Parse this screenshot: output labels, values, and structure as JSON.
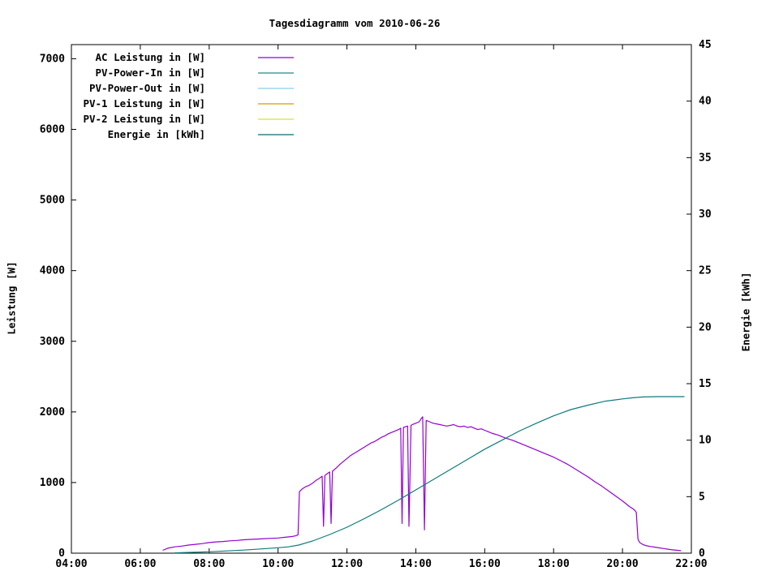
{
  "chart_data": {
    "type": "line",
    "title": "Tagesdiagramm vom 2010-06-26",
    "x_axis": {
      "ticks": [
        "04:00",
        "06:00",
        "08:00",
        "10:00",
        "12:00",
        "14:00",
        "16:00",
        "18:00",
        "20:00",
        "22:00"
      ],
      "range_hours": [
        4,
        22
      ]
    },
    "y_left": {
      "label": "Leistung [W]",
      "ticks": [
        0,
        1000,
        2000,
        3000,
        4000,
        5000,
        6000,
        7000
      ],
      "range": [
        0,
        7200
      ]
    },
    "y_right": {
      "label": "Energie [kWh]",
      "ticks": [
        0,
        5,
        10,
        15,
        20,
        25,
        30,
        35,
        40,
        45
      ],
      "range": [
        0,
        45
      ]
    },
    "legend": [
      {
        "label": "AC Leistung in [W]",
        "color": "#9400d3"
      },
      {
        "label": "PV-Power-In in [W]",
        "color": "#1f8a8a"
      },
      {
        "label": "PV-Power-Out in [W]",
        "color": "#87ceeb"
      },
      {
        "label": "PV-1 Leistung in [W]",
        "color": "#d39c00"
      },
      {
        "label": "PV-2 Leistung in [W]",
        "color": "#dede3c"
      },
      {
        "label": "Energie in [kWh]",
        "color": "#0e6b6b"
      }
    ],
    "series": [
      {
        "name": "AC Leistung in [W]",
        "axis": "left",
        "color": "#9400d3",
        "points": [
          [
            6.65,
            40
          ],
          [
            6.8,
            70
          ],
          [
            7.0,
            90
          ],
          [
            7.2,
            100
          ],
          [
            7.4,
            115
          ],
          [
            7.6,
            125
          ],
          [
            7.8,
            135
          ],
          [
            8.0,
            150
          ],
          [
            8.2,
            160
          ],
          [
            8.4,
            165
          ],
          [
            8.6,
            175
          ],
          [
            8.8,
            180
          ],
          [
            9.0,
            190
          ],
          [
            9.2,
            195
          ],
          [
            9.4,
            200
          ],
          [
            9.6,
            205
          ],
          [
            9.8,
            210
          ],
          [
            10.0,
            215
          ],
          [
            10.2,
            225
          ],
          [
            10.4,
            235
          ],
          [
            10.5,
            245
          ],
          [
            10.58,
            260
          ],
          [
            10.62,
            870
          ],
          [
            10.7,
            910
          ],
          [
            10.8,
            940
          ],
          [
            10.9,
            960
          ],
          [
            11.0,
            990
          ],
          [
            11.1,
            1030
          ],
          [
            11.2,
            1060
          ],
          [
            11.28,
            1090
          ],
          [
            11.32,
            380
          ],
          [
            11.36,
            1100
          ],
          [
            11.44,
            1130
          ],
          [
            11.5,
            1150
          ],
          [
            11.54,
            420
          ],
          [
            11.58,
            1160
          ],
          [
            11.7,
            1210
          ],
          [
            11.8,
            1260
          ],
          [
            11.9,
            1300
          ],
          [
            12.0,
            1340
          ],
          [
            12.1,
            1380
          ],
          [
            12.2,
            1410
          ],
          [
            12.3,
            1440
          ],
          [
            12.4,
            1470
          ],
          [
            12.5,
            1500
          ],
          [
            12.6,
            1530
          ],
          [
            12.7,
            1560
          ],
          [
            12.8,
            1580
          ],
          [
            12.9,
            1610
          ],
          [
            13.0,
            1640
          ],
          [
            13.1,
            1660
          ],
          [
            13.2,
            1690
          ],
          [
            13.3,
            1710
          ],
          [
            13.4,
            1730
          ],
          [
            13.5,
            1750
          ],
          [
            13.56,
            1770
          ],
          [
            13.6,
            420
          ],
          [
            13.64,
            1780
          ],
          [
            13.7,
            1790
          ],
          [
            13.76,
            1800
          ],
          [
            13.8,
            380
          ],
          [
            13.86,
            1810
          ],
          [
            13.9,
            1820
          ],
          [
            14.0,
            1840
          ],
          [
            14.1,
            1860
          ],
          [
            14.15,
            1900
          ],
          [
            14.2,
            1930
          ],
          [
            14.25,
            330
          ],
          [
            14.3,
            1880
          ],
          [
            14.4,
            1860
          ],
          [
            14.5,
            1840
          ],
          [
            14.6,
            1830
          ],
          [
            14.7,
            1820
          ],
          [
            14.8,
            1810
          ],
          [
            14.9,
            1800
          ],
          [
            15.0,
            1810
          ],
          [
            15.1,
            1820
          ],
          [
            15.2,
            1800
          ],
          [
            15.3,
            1790
          ],
          [
            15.4,
            1800
          ],
          [
            15.5,
            1780
          ],
          [
            15.6,
            1790
          ],
          [
            15.7,
            1770
          ],
          [
            15.8,
            1750
          ],
          [
            15.9,
            1760
          ],
          [
            16.0,
            1740
          ],
          [
            16.1,
            1720
          ],
          [
            16.2,
            1700
          ],
          [
            16.4,
            1670
          ],
          [
            16.6,
            1630
          ],
          [
            16.8,
            1600
          ],
          [
            17.0,
            1560
          ],
          [
            17.2,
            1520
          ],
          [
            17.4,
            1480
          ],
          [
            17.6,
            1440
          ],
          [
            17.8,
            1400
          ],
          [
            18.0,
            1360
          ],
          [
            18.2,
            1310
          ],
          [
            18.4,
            1260
          ],
          [
            18.6,
            1200
          ],
          [
            18.8,
            1140
          ],
          [
            19.0,
            1080
          ],
          [
            19.2,
            1010
          ],
          [
            19.4,
            950
          ],
          [
            19.6,
            880
          ],
          [
            19.8,
            810
          ],
          [
            20.0,
            740
          ],
          [
            20.1,
            700
          ],
          [
            20.2,
            660
          ],
          [
            20.3,
            630
          ],
          [
            20.35,
            610
          ],
          [
            20.4,
            580
          ],
          [
            20.45,
            200
          ],
          [
            20.5,
            150
          ],
          [
            20.6,
            120
          ],
          [
            20.7,
            105
          ],
          [
            20.8,
            95
          ],
          [
            21.0,
            80
          ],
          [
            21.2,
            65
          ],
          [
            21.4,
            50
          ],
          [
            21.6,
            40
          ],
          [
            21.7,
            35
          ]
        ]
      },
      {
        "name": "Energie in [kWh]",
        "axis": "right",
        "color": "#0e7b7b",
        "points": [
          [
            7.0,
            0.03
          ],
          [
            8.0,
            0.12
          ],
          [
            9.0,
            0.27
          ],
          [
            9.5,
            0.37
          ],
          [
            10.0,
            0.48
          ],
          [
            10.3,
            0.56
          ],
          [
            10.6,
            0.72
          ],
          [
            11.0,
            1.08
          ],
          [
            11.5,
            1.65
          ],
          [
            12.0,
            2.3
          ],
          [
            12.5,
            3.05
          ],
          [
            13.0,
            3.85
          ],
          [
            13.5,
            4.7
          ],
          [
            14.0,
            5.6
          ],
          [
            14.5,
            6.5
          ],
          [
            15.0,
            7.4
          ],
          [
            15.5,
            8.3
          ],
          [
            16.0,
            9.2
          ],
          [
            16.5,
            10.0
          ],
          [
            17.0,
            10.8
          ],
          [
            17.5,
            11.5
          ],
          [
            18.0,
            12.15
          ],
          [
            18.5,
            12.7
          ],
          [
            19.0,
            13.1
          ],
          [
            19.5,
            13.45
          ],
          [
            20.0,
            13.65
          ],
          [
            20.3,
            13.75
          ],
          [
            20.6,
            13.82
          ],
          [
            21.0,
            13.85
          ],
          [
            21.5,
            13.85
          ],
          [
            21.8,
            13.85
          ]
        ]
      }
    ]
  }
}
